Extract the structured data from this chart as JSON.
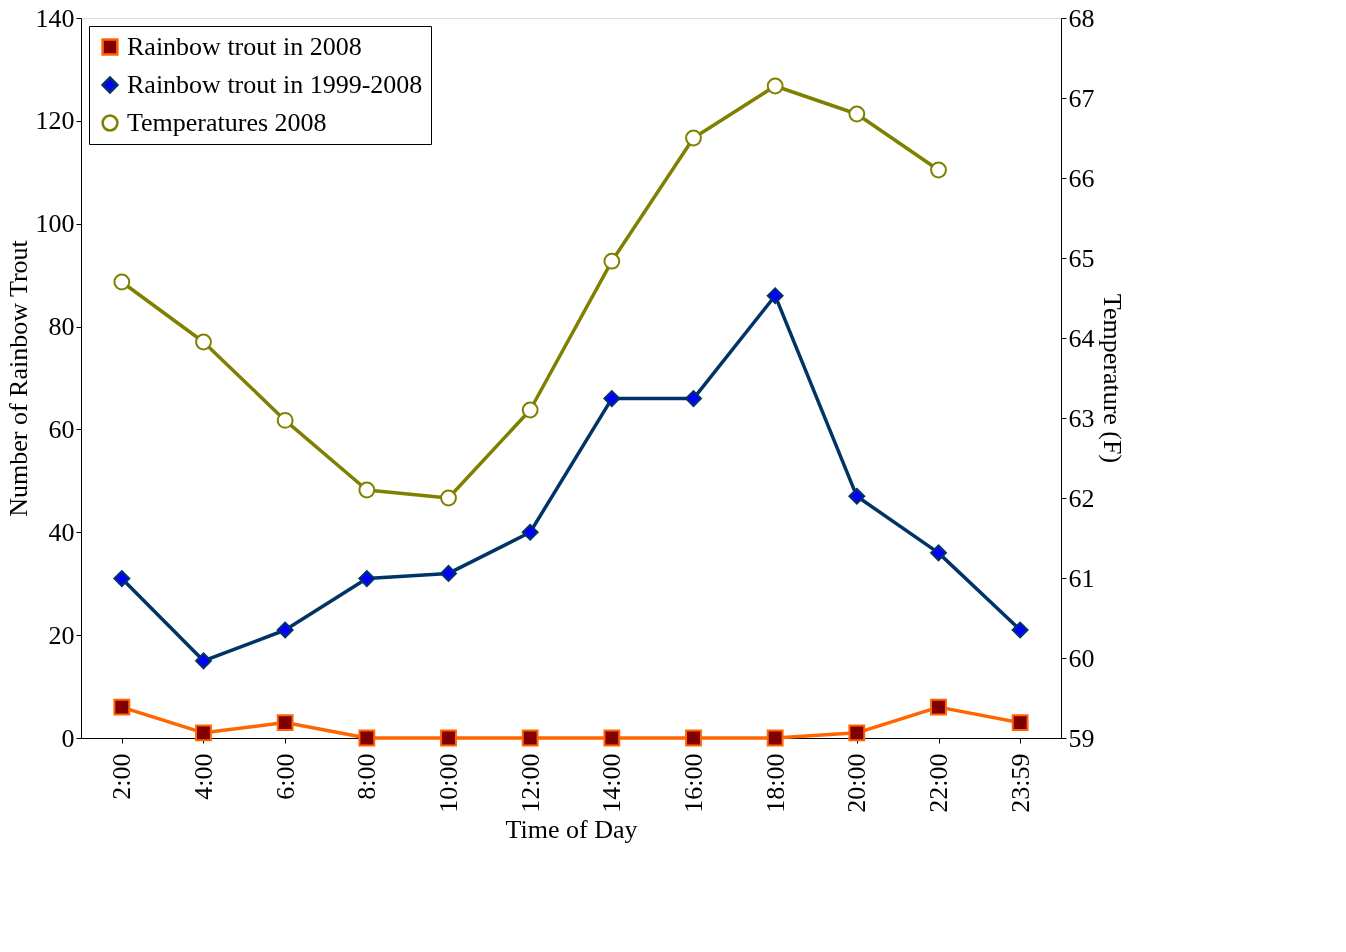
{
  "chart_data": {
    "type": "line",
    "xlabel": "Time of Day",
    "ylabel": "Number of Rainbow Trout",
    "y2label": "Temperature (F)",
    "categories": [
      "2:00",
      "4:00",
      "6:00",
      "8:00",
      "10:00",
      "12:00",
      "14:00",
      "16:00",
      "18:00",
      "20:00",
      "22:00",
      "23:59"
    ],
    "series": [
      {
        "name": "Rainbow trout in 2008",
        "color": "#ff6600",
        "marker": "square",
        "values": [
          6,
          1,
          3,
          0,
          0,
          0,
          0,
          0,
          0,
          1,
          6,
          3
        ]
      },
      {
        "name": "Rainbow trout in 1999-2008",
        "color": "#003366",
        "marker": "diamond",
        "values": [
          31,
          15,
          21,
          31,
          32,
          40,
          66,
          66,
          86,
          47,
          36,
          21
        ]
      },
      {
        "name": "Temperatures 2008",
        "color": "#808000",
        "marker": "circle",
        "axis": "y2",
        "values": [
          64.7,
          63.95,
          62.97,
          62.1,
          62.0,
          63.1,
          64.96,
          66.5,
          67.15,
          66.8,
          66.1,
          null
        ]
      }
    ],
    "ylim": [
      0,
      140
    ],
    "yticks": [
      0,
      20,
      40,
      60,
      80,
      100,
      120,
      140
    ],
    "y2lim": [
      59,
      68
    ],
    "y2ticks": [
      59,
      60,
      61,
      62,
      63,
      64,
      65,
      66,
      67,
      68
    ],
    "grid": false,
    "legend": "top left",
    "line_style": "solid"
  }
}
